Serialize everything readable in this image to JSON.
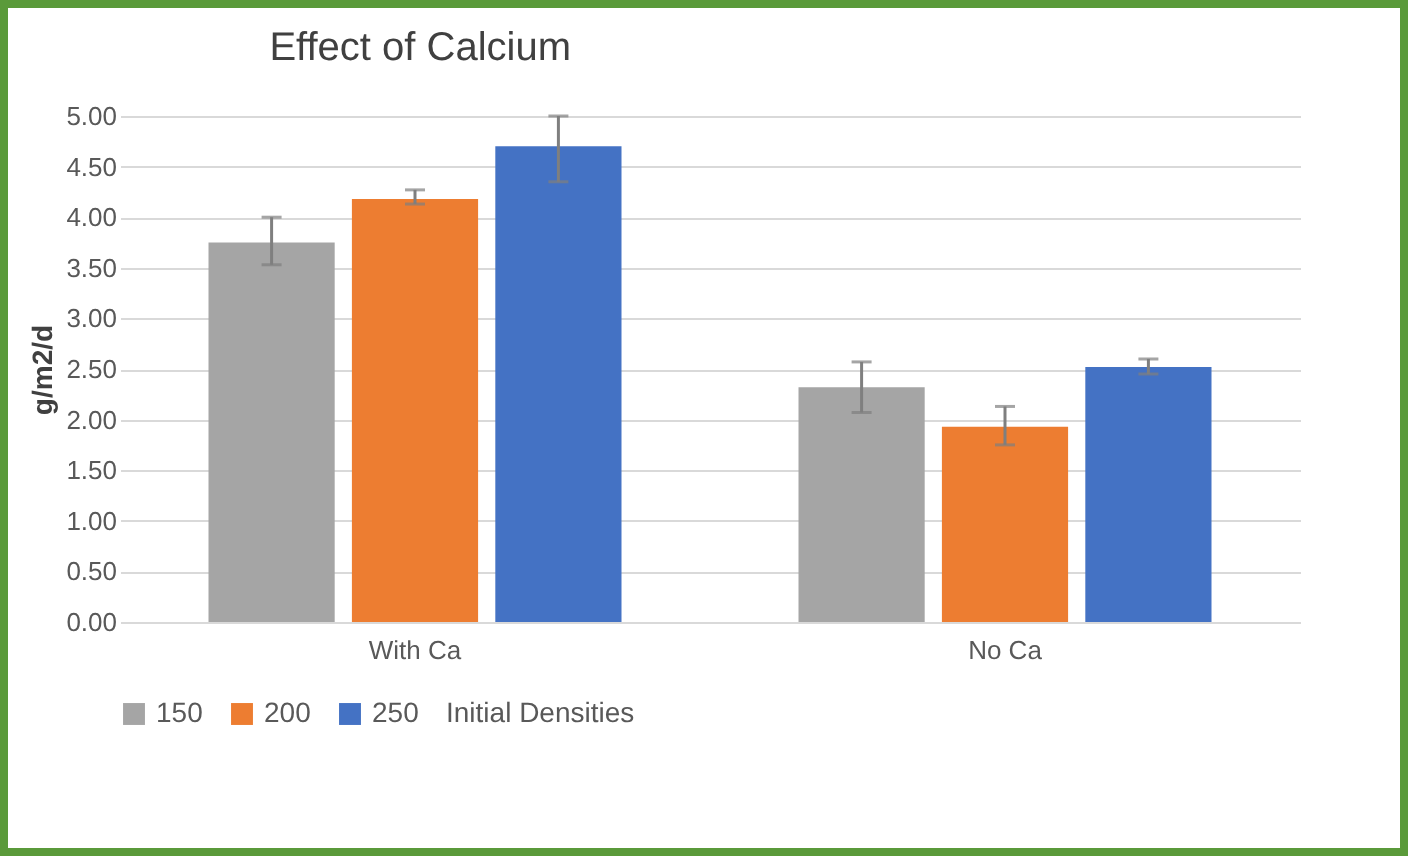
{
  "chart_data": {
    "type": "bar",
    "title": "Effect of Calcium",
    "ylabel": "g/m2/d",
    "legend_title": "Initial Densities",
    "categories": [
      "With Ca",
      "No Ca"
    ],
    "series": [
      {
        "name": "150",
        "color": "#a5a5a5",
        "values": [
          3.75,
          2.32
        ],
        "errors": [
          [
            3.53,
            4.0
          ],
          [
            2.07,
            2.57
          ]
        ]
      },
      {
        "name": "200",
        "color": "#ed7d31",
        "values": [
          4.18,
          1.93
        ],
        "errors": [
          [
            4.13,
            4.27
          ],
          [
            1.75,
            2.13
          ]
        ]
      },
      {
        "name": "250",
        "color": "#4472c4",
        "values": [
          4.7,
          2.52
        ],
        "errors": [
          [
            4.35,
            5.0
          ],
          [
            2.45,
            2.6
          ]
        ]
      }
    ],
    "ylim": [
      0,
      5
    ],
    "yticks": [
      {
        "value": 0,
        "label": "0.00"
      },
      {
        "value": 0.5,
        "label": "0.50"
      },
      {
        "value": 1,
        "label": "1.00"
      },
      {
        "value": 1.5,
        "label": "1.50"
      },
      {
        "value": 2,
        "label": "2.00"
      },
      {
        "value": 2.5,
        "label": "2.50"
      },
      {
        "value": 3,
        "label": "3.00"
      },
      {
        "value": 3.5,
        "label": "3.50"
      },
      {
        "value": 4,
        "label": "4.00"
      },
      {
        "value": 4.5,
        "label": "4.50"
      },
      {
        "value": 5,
        "label": "5.00"
      }
    ],
    "grid": "y",
    "legend": "bottom"
  }
}
